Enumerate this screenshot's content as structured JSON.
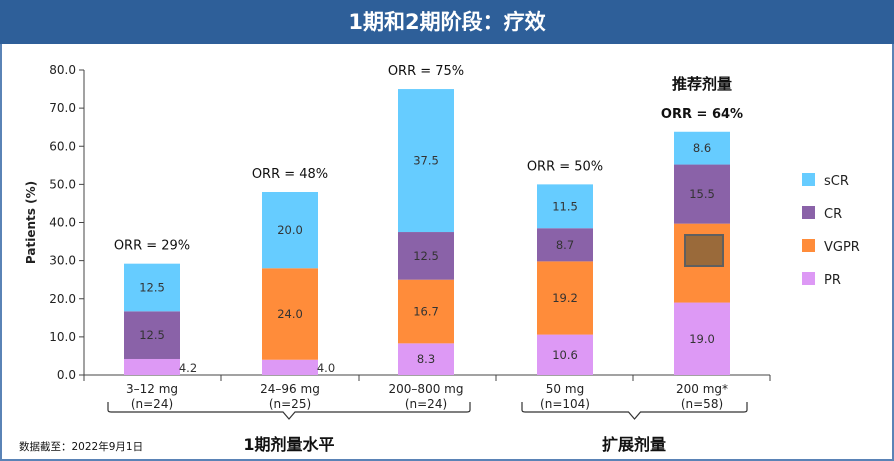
{
  "title": "1期和2期阶段：疗效",
  "footnote": "数据截至：2022年9月1日",
  "colors": {
    "title_bar": "#2e5f99",
    "sCR": "#66ccff",
    "CR": "#8a62a8",
    "VGPR": "#ff8c3a",
    "PR": "#dd99f5",
    "highlight_fill": "#9a6a3a",
    "highlight_stroke": "#5f5f5f"
  },
  "chart_data": {
    "type": "bar",
    "stacked": true,
    "ylabel": "Patients (%)",
    "ylim": [
      0,
      80
    ],
    "yticks": [
      "0.0",
      "10.0",
      "20.0",
      "30.0",
      "40.0",
      "50.0",
      "60.0",
      "70.0",
      "80.0"
    ],
    "categories": [
      {
        "label": "3–12 mg",
        "n": "(n=24)"
      },
      {
        "label": "24–96 mg",
        "n": "(n=25)"
      },
      {
        "label": "200–800 mg",
        "n": "(n=24)"
      },
      {
        "label": "50 mg",
        "n": "(n=104)"
      },
      {
        "label": "200 mg*",
        "n": "(n=58)"
      }
    ],
    "series": [
      {
        "name": "PR",
        "values": [
          4.2,
          4.0,
          8.3,
          10.6,
          19.0
        ]
      },
      {
        "name": "VGPR",
        "values": [
          0,
          0,
          16.7,
          19.2,
          20.7
        ]
      },
      {
        "name": "VGPR",
        "values": [
          0,
          24.0,
          0,
          0,
          0
        ]
      },
      {
        "name": "CR",
        "values": [
          12.5,
          0,
          12.5,
          8.7,
          15.5
        ]
      },
      {
        "name": "sCR",
        "values": [
          12.5,
          20.0,
          37.5,
          11.5,
          8.6
        ]
      }
    ],
    "orr_labels": [
      "ORR = 29%",
      "ORR = 48%",
      "ORR = 75%",
      "ORR = 50%",
      "ORR = 64%"
    ],
    "orr_bold": [
      false,
      false,
      false,
      false,
      true
    ],
    "recommended_dose_label": "推荐剂量",
    "legend": [
      "sCR",
      "CR",
      "VGPR",
      "PR"
    ],
    "groups": [
      {
        "label": "1期剂量水平",
        "categories": [
          0,
          1,
          2
        ]
      },
      {
        "label": "扩展剂量",
        "categories": [
          3,
          4
        ]
      }
    ]
  }
}
